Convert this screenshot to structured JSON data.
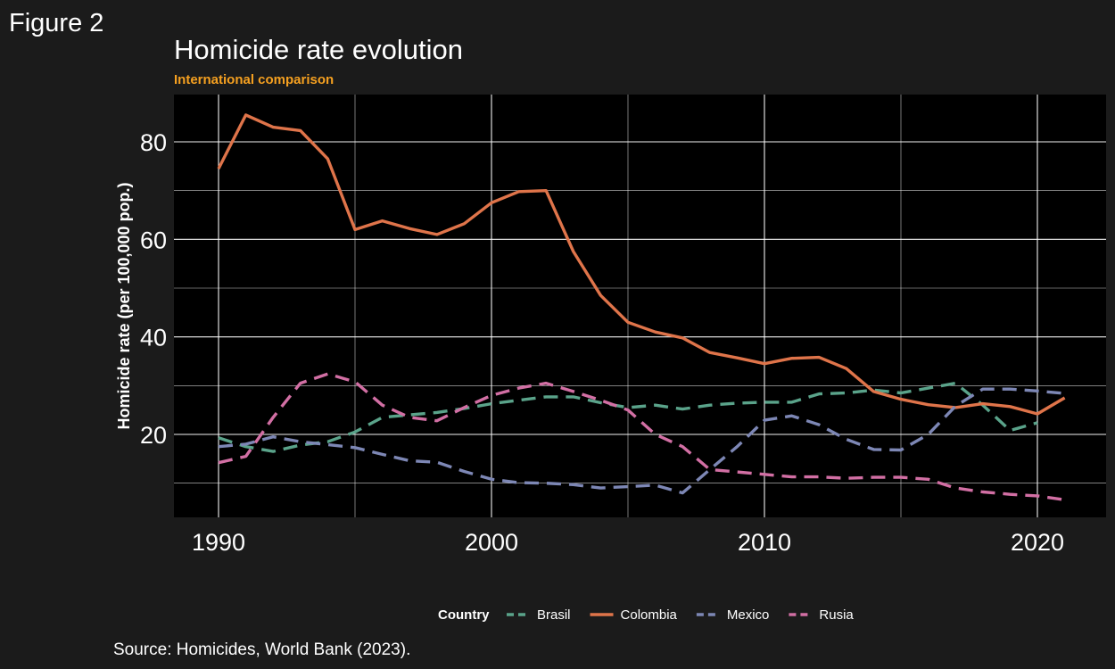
{
  "figure_label": "Figure 2",
  "source": "Source: Homicides, World Bank (2023).",
  "chart_data": {
    "type": "line",
    "title": "Homicide rate evolution",
    "subtitle": "International comparison",
    "xlabel": "",
    "ylabel": "Homicide rate (per 100,000 pop.)",
    "xlim": [
      1988.5,
      1992.5
    ],
    "ylim": [
      3,
      89
    ],
    "x_ticks": [
      1990,
      2000,
      2010,
      2020
    ],
    "y_ticks": [
      20,
      40,
      60,
      80
    ],
    "grid": true,
    "legend": {
      "title": "Country",
      "position": "bottom"
    },
    "colors": {
      "background": "#000000",
      "page": "#1b1b1b",
      "grid": "#ffffff",
      "subtitle": "#f5a020"
    },
    "series": [
      {
        "name": "Brasil",
        "color": "#5aa38a",
        "dash": "dashed",
        "x": [
          1990,
          1991,
          1992,
          1993,
          1994,
          1995,
          1996,
          1997,
          1998,
          1999,
          2000,
          2001,
          2002,
          2003,
          2004,
          2005,
          2006,
          2007,
          2008,
          2009,
          2010,
          2011,
          2012,
          2013,
          2014,
          2015,
          2016,
          2017,
          2018,
          2019,
          2020
        ],
        "values": [
          19.3,
          17.5,
          16.5,
          17.8,
          18.5,
          20.5,
          23.5,
          24.0,
          24.5,
          25.3,
          26.3,
          27.0,
          27.7,
          27.7,
          26.5,
          25.5,
          26.0,
          25.2,
          26.0,
          26.4,
          26.6,
          26.6,
          28.3,
          28.5,
          29.1,
          28.5,
          29.5,
          30.5,
          26.0,
          20.8,
          22.4
        ]
      },
      {
        "name": "Colombia",
        "color": "#df744a",
        "dash": "solid",
        "x": [
          1990,
          1991,
          1992,
          1993,
          1994,
          1995,
          1996,
          1997,
          1998,
          1999,
          2000,
          2001,
          2002,
          2003,
          2004,
          2005,
          2006,
          2007,
          2008,
          2009,
          2010,
          2011,
          2012,
          2013,
          2014,
          2015,
          2016,
          2017,
          2018,
          2019,
          2020,
          2021
        ],
        "values": [
          74.5,
          85.5,
          83.0,
          82.3,
          76.5,
          62.0,
          63.8,
          62.2,
          61.0,
          63.2,
          67.5,
          69.8,
          70.0,
          57.5,
          48.5,
          43.0,
          41.0,
          39.8,
          36.8,
          35.7,
          34.5,
          35.6,
          35.8,
          33.5,
          28.8,
          27.2,
          26.1,
          25.5,
          26.3,
          25.7,
          24.2,
          27.5
        ]
      },
      {
        "name": "Mexico",
        "color": "#7d87b5",
        "dash": "dashed",
        "x": [
          1990,
          1991,
          1992,
          1993,
          1994,
          1995,
          1996,
          1997,
          1998,
          1999,
          2000,
          2001,
          2002,
          2003,
          2004,
          2005,
          2006,
          2007,
          2008,
          2009,
          2010,
          2011,
          2012,
          2013,
          2014,
          2015,
          2016,
          2017,
          2018,
          2019,
          2020,
          2021
        ],
        "values": [
          17.5,
          18.0,
          19.5,
          18.5,
          17.9,
          17.3,
          15.9,
          14.6,
          14.3,
          12.4,
          10.8,
          10.1,
          10.0,
          9.7,
          9.0,
          9.3,
          9.6,
          8.0,
          12.8,
          17.5,
          22.9,
          23.8,
          22.0,
          19.0,
          16.9,
          16.8,
          20.0,
          25.8,
          29.3,
          29.3,
          28.9,
          28.4
        ]
      },
      {
        "name": "Rusia",
        "color": "#d26fa4",
        "dash": "dashed",
        "x": [
          1990,
          1991,
          1992,
          1993,
          1994,
          1995,
          1996,
          1997,
          1998,
          1999,
          2000,
          2001,
          2002,
          2003,
          2004,
          2005,
          2006,
          2007,
          2008,
          2009,
          2010,
          2011,
          2012,
          2013,
          2014,
          2015,
          2016,
          2017,
          2018,
          2019,
          2020,
          2021
        ],
        "values": [
          14.2,
          15.5,
          23.5,
          30.5,
          32.4,
          30.8,
          26.0,
          23.5,
          22.8,
          25.5,
          28.0,
          29.5,
          30.5,
          28.8,
          27.0,
          25.0,
          20.0,
          17.5,
          12.8,
          12.3,
          11.8,
          11.3,
          11.3,
          11.0,
          11.2,
          11.2,
          10.8,
          9.0,
          8.2,
          7.7,
          7.4,
          6.6
        ]
      }
    ]
  }
}
